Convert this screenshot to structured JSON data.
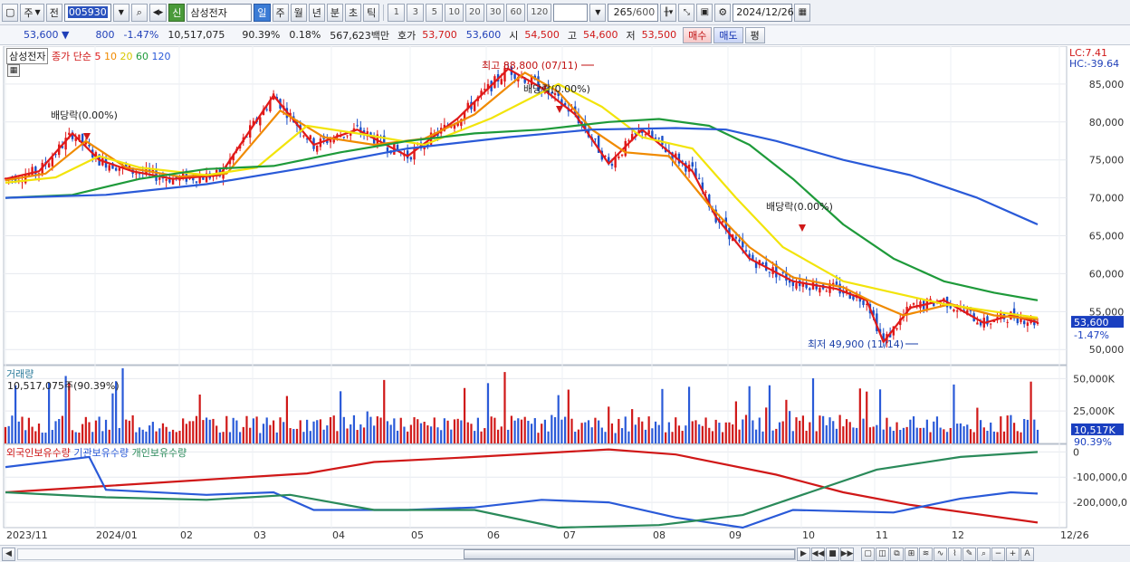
{
  "toolbar": {
    "period_label": "주",
    "prev_label": "전",
    "stock_code": "005930",
    "credit_badge": "신",
    "stock_name": "삼성전자",
    "period_tabs": [
      "일",
      "주",
      "월",
      "년",
      "분",
      "초",
      "틱"
    ],
    "active_period": "일",
    "interval_buttons": [
      "1",
      "3",
      "5",
      "10",
      "20",
      "30",
      "60",
      "120"
    ],
    "count_current": "265",
    "count_total": "/600",
    "date": "2024/12/26"
  },
  "quote": {
    "price": "53,600",
    "change": "800",
    "change_pct": "-1.47%",
    "volume": "10,517,075",
    "vol_ratio": "90.39%",
    "turnover": "0.18%",
    "amount": "567,623백만",
    "hoga_label": "호가",
    "ask": "53,700",
    "bid": "53,600",
    "open_label": "시",
    "open": "54,500",
    "high_label": "고",
    "high": "54,600",
    "low_label": "저",
    "low": "53,500",
    "buy_label": "매수",
    "sell_label": "매도",
    "eval_label": "평"
  },
  "price_panel": {
    "name_box": "삼성전자",
    "ma_title": "종가 단순",
    "ma_periods": [
      "5",
      "10",
      "20",
      "60",
      "120"
    ],
    "ma_colors": [
      "#e01a1a",
      "#f08a00",
      "#f2e40a",
      "#1e9a3a",
      "#2a5ad8"
    ],
    "lc_label": "LC:7.41",
    "hc_label": "HC:-39.64",
    "y_ticks": [
      "85,000",
      "80,000",
      "75,000",
      "70,000",
      "65,000",
      "60,000",
      "55,000",
      "50,000"
    ],
    "price_tag": "53,600",
    "pct_tag": "-1.47%",
    "annotations": {
      "high": "최고 88,800 (07/11)",
      "low": "최저 49,900 (11/14)",
      "dividend_1": "배당락(0.00%)",
      "dividend_2": "배당락(0.00%)",
      "dividend_3": "배당락(0.00%)"
    }
  },
  "volume_panel": {
    "title": "거래량",
    "value_text": "10,517,075주(90.39%)",
    "y_ticks": [
      "50,000K",
      "25,000K"
    ],
    "vol_tag": "10,517K",
    "pct_tag": "90.39%"
  },
  "holdings_panel": {
    "legends": [
      "외국인보유수량",
      "기관보유수량",
      "개인보유수량"
    ],
    "legend_colors": [
      "#d01818",
      "#2a5ad8",
      "#2a8a5a"
    ],
    "y_ticks": [
      "0",
      "-100,000,0",
      "-200,000,0"
    ]
  },
  "x_axis": {
    "labels": [
      "2023/11",
      "2024/01",
      "02",
      "03",
      "04",
      "05",
      "06",
      "07",
      "08",
      "09",
      "10",
      "11",
      "12",
      "12/26"
    ]
  },
  "chart_data": [
    {
      "type": "line",
      "title": "",
      "ylim": [
        48000,
        90000
      ],
      "series": [
        {
          "name": "5",
          "points": [
            [
              0,
              72500
            ],
            [
              10,
              73500
            ],
            [
              20,
              78500
            ],
            [
              28,
              75000
            ],
            [
              38,
              73500
            ],
            [
              50,
              72500
            ],
            [
              64,
              73000
            ],
            [
              80,
              83500
            ],
            [
              92,
              77000
            ],
            [
              105,
              79000
            ],
            [
              120,
              75500
            ],
            [
              135,
              80500
            ],
            [
              150,
              87000
            ],
            [
              160,
              84500
            ],
            [
              170,
              81000
            ],
            [
              180,
              74500
            ],
            [
              190,
              79000
            ],
            [
              205,
              73500
            ],
            [
              212,
              67500
            ],
            [
              222,
              62000
            ],
            [
              235,
              59000
            ],
            [
              248,
              58000
            ],
            [
              257,
              56500
            ],
            [
              262,
              51000
            ],
            [
              270,
              55500
            ],
            [
              280,
              56500
            ],
            [
              292,
              53500
            ],
            [
              300,
              54500
            ],
            [
              308,
              53600
            ]
          ]
        },
        {
          "name": "10",
          "points": [
            [
              0,
              72300
            ],
            [
              12,
              73200
            ],
            [
              24,
              77500
            ],
            [
              36,
              74000
            ],
            [
              52,
              72800
            ],
            [
              66,
              73200
            ],
            [
              82,
              81500
            ],
            [
              95,
              78000
            ],
            [
              110,
              77000
            ],
            [
              125,
              77800
            ],
            [
              140,
              81000
            ],
            [
              155,
              86500
            ],
            [
              165,
              84000
            ],
            [
              175,
              79000
            ],
            [
              185,
              76000
            ],
            [
              198,
              75500
            ],
            [
              210,
              69000
            ],
            [
              222,
              63500
            ],
            [
              235,
              59500
            ],
            [
              250,
              58200
            ],
            [
              260,
              56000
            ],
            [
              268,
              54500
            ],
            [
              282,
              56000
            ],
            [
              295,
              54500
            ],
            [
              308,
              54000
            ]
          ]
        },
        {
          "name": "20",
          "points": [
            [
              0,
              72000
            ],
            [
              15,
              72700
            ],
            [
              28,
              75500
            ],
            [
              40,
              74000
            ],
            [
              60,
              73000
            ],
            [
              75,
              74000
            ],
            [
              90,
              79500
            ],
            [
              105,
              78500
            ],
            [
              125,
              77000
            ],
            [
              145,
              80500
            ],
            [
              165,
              85000
            ],
            [
              178,
              82000
            ],
            [
              190,
              78000
            ],
            [
              205,
              76500
            ],
            [
              218,
              70000
            ],
            [
              232,
              63500
            ],
            [
              250,
              59000
            ],
            [
              265,
              57500
            ],
            [
              280,
              56000
            ],
            [
              295,
              55000
            ],
            [
              308,
              54200
            ]
          ]
        },
        {
          "name": "60",
          "points": [
            [
              0,
              70000
            ],
            [
              20,
              70400
            ],
            [
              40,
              72500
            ],
            [
              60,
              73800
            ],
            [
              80,
              74200
            ],
            [
              100,
              76000
            ],
            [
              120,
              77500
            ],
            [
              140,
              78500
            ],
            [
              160,
              79000
            ],
            [
              180,
              80000
            ],
            [
              195,
              80400
            ],
            [
              210,
              79500
            ],
            [
              222,
              77000
            ],
            [
              235,
              72500
            ],
            [
              250,
              66500
            ],
            [
              265,
              62000
            ],
            [
              280,
              59000
            ],
            [
              295,
              57500
            ],
            [
              308,
              56500
            ]
          ]
        },
        {
          "name": "120",
          "points": [
            [
              0,
              70000
            ],
            [
              30,
              70400
            ],
            [
              60,
              71800
            ],
            [
              90,
              74000
            ],
            [
              120,
              76500
            ],
            [
              150,
              78000
            ],
            [
              175,
              79000
            ],
            [
              200,
              79200
            ],
            [
              215,
              79000
            ],
            [
              230,
              77500
            ],
            [
              250,
              75000
            ],
            [
              270,
              73000
            ],
            [
              290,
              70000
            ],
            [
              308,
              66500
            ]
          ]
        }
      ]
    },
    {
      "type": "bar",
      "title": "",
      "ylim": [
        0,
        60000
      ],
      "ylabel": "",
      "series": [
        {
          "name": "거래량",
          "values": [
            9000,
            10517
          ]
        }
      ]
    },
    {
      "type": "line",
      "title": "",
      "ylim": [
        -300000,
        30000
      ],
      "series": [
        {
          "name": "외국인보유수량",
          "points": [
            [
              0,
              -160000
            ],
            [
              30,
              -135000
            ],
            [
              60,
              -110000
            ],
            [
              90,
              -85000
            ],
            [
              110,
              -40000
            ],
            [
              140,
              -20000
            ],
            [
              180,
              10000
            ],
            [
              200,
              -10000
            ],
            [
              230,
              -90000
            ],
            [
              250,
              -160000
            ],
            [
              270,
              -210000
            ],
            [
              308,
              -280000
            ]
          ]
        },
        {
          "name": "기관보유수량",
          "points": [
            [
              0,
              -60000
            ],
            [
              25,
              -20000
            ],
            [
              30,
              -150000
            ],
            [
              60,
              -170000
            ],
            [
              80,
              -160000
            ],
            [
              92,
              -230000
            ],
            [
              120,
              -230000
            ],
            [
              140,
              -220000
            ],
            [
              160,
              -190000
            ],
            [
              180,
              -200000
            ],
            [
              200,
              -260000
            ],
            [
              220,
              -300000
            ],
            [
              235,
              -230000
            ],
            [
              265,
              -240000
            ],
            [
              285,
              -185000
            ],
            [
              300,
              -160000
            ],
            [
              308,
              -165000
            ]
          ]
        },
        {
          "name": "개인보유수량",
          "points": [
            [
              0,
              -160000
            ],
            [
              30,
              -180000
            ],
            [
              60,
              -190000
            ],
            [
              85,
              -170000
            ],
            [
              110,
              -230000
            ],
            [
              140,
              -230000
            ],
            [
              165,
              -300000
            ],
            [
              195,
              -290000
            ],
            [
              220,
              -250000
            ],
            [
              240,
              -160000
            ],
            [
              260,
              -70000
            ],
            [
              285,
              -20000
            ],
            [
              308,
              0
            ]
          ]
        }
      ]
    }
  ]
}
